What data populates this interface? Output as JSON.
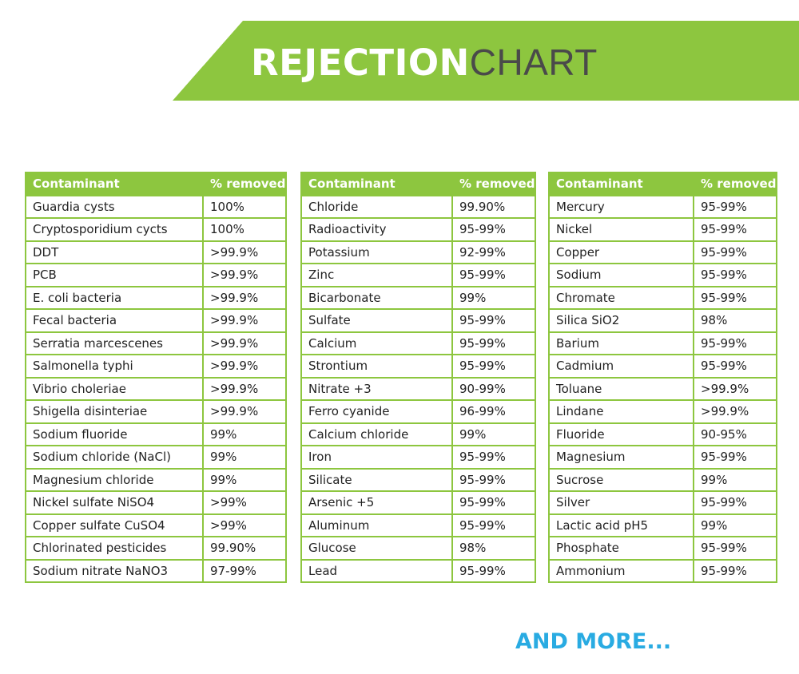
{
  "title": {
    "bold": "REJECTION",
    "light": "CHART"
  },
  "tables": [
    {
      "headers": [
        "Contaminant",
        "% removed"
      ],
      "rows": [
        [
          "Guardia cysts",
          "100%"
        ],
        [
          "Cryptosporidium cycts",
          "100%"
        ],
        [
          "DDT",
          ">99.9%"
        ],
        [
          "PCB",
          ">99.9%"
        ],
        [
          "E. coli bacteria",
          ">99.9%"
        ],
        [
          "Fecal bacteria",
          ">99.9%"
        ],
        [
          "Serratia marcescenes",
          ">99.9%"
        ],
        [
          "Salmonella typhi",
          ">99.9%"
        ],
        [
          "Vibrio choleriae",
          ">99.9%"
        ],
        [
          "Shigella disinteriae",
          ">99.9%"
        ],
        [
          "Sodium fluoride",
          "99%"
        ],
        [
          "Sodium chloride (NaCl)",
          "99%"
        ],
        [
          "Magnesium chloride",
          "99%"
        ],
        [
          "Nickel sulfate NiSO4",
          ">99%"
        ],
        [
          "Copper sulfate CuSO4",
          ">99%"
        ],
        [
          "Chlorinated pesticides",
          "99.90%"
        ],
        [
          "Sodium nitrate NaNO3",
          "97-99%"
        ]
      ]
    },
    {
      "headers": [
        "Contaminant",
        "% removed"
      ],
      "rows": [
        [
          "Chloride",
          "99.90%"
        ],
        [
          "Radioactivity",
          "95-99%"
        ],
        [
          "Potassium",
          "92-99%"
        ],
        [
          "Zinc",
          "95-99%"
        ],
        [
          "Bicarbonate",
          "99%"
        ],
        [
          "Sulfate",
          "95-99%"
        ],
        [
          "Calcium",
          "95-99%"
        ],
        [
          "Strontium",
          "95-99%"
        ],
        [
          "Nitrate +3",
          "90-99%"
        ],
        [
          "Ferro cyanide",
          "96-99%"
        ],
        [
          "Calcium chloride",
          "99%"
        ],
        [
          "Iron",
          "95-99%"
        ],
        [
          "Silicate",
          "95-99%"
        ],
        [
          "Arsenic +5",
          "95-99%"
        ],
        [
          "Aluminum",
          "95-99%"
        ],
        [
          "Glucose",
          "98%"
        ],
        [
          "Lead",
          "95-99%"
        ]
      ]
    },
    {
      "headers": [
        "Contaminant",
        "% removed"
      ],
      "rows": [
        [
          "Mercury",
          "95-99%"
        ],
        [
          "Nickel",
          "95-99%"
        ],
        [
          "Copper",
          "95-99%"
        ],
        [
          "Sodium",
          "95-99%"
        ],
        [
          "Chromate",
          "95-99%"
        ],
        [
          "Silica SiO2",
          "98%"
        ],
        [
          "Barium",
          "95-99%"
        ],
        [
          "Cadmium",
          "95-99%"
        ],
        [
          "Toluane",
          ">99.9%"
        ],
        [
          "Lindane",
          ">99.9%"
        ],
        [
          "Fluoride",
          "90-95%"
        ],
        [
          "Magnesium",
          "95-99%"
        ],
        [
          "Sucrose",
          "99%"
        ],
        [
          "Silver",
          "95-99%"
        ],
        [
          "Lactic acid pH5",
          "99%"
        ],
        [
          "Phosphate",
          "95-99%"
        ],
        [
          "Ammonium",
          "95-99%"
        ]
      ]
    }
  ],
  "footer": {
    "more_label": "AND MORE..."
  },
  "colors": {
    "accent_green": "#8dc63f",
    "more_blue": "#29abe2",
    "title_gray": "#4a4a4a"
  }
}
